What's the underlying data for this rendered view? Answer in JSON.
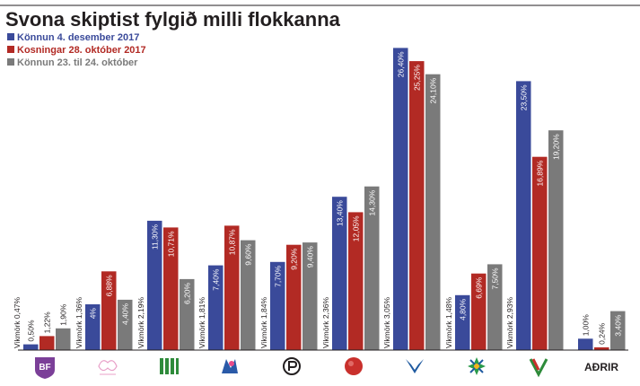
{
  "chart_data": {
    "type": "bar",
    "title": "Svona skiptist fylgið milli flokkanna",
    "legend_position": "top-left",
    "ylim": [
      0,
      28
    ],
    "categories": [
      "BF",
      "C",
      "F",
      "M",
      "P",
      "S",
      "D",
      "B",
      "V",
      "AÐRIR"
    ],
    "category_icons": [
      "bf-logo",
      "c-logo",
      "f-logo",
      "m-logo",
      "p-logo",
      "s-logo",
      "d-logo",
      "b-logo",
      "v-logo",
      "adrir-label"
    ],
    "other_label": "AÐRIR",
    "margins_of_error": [
      "Vikmörk 0,47%",
      "Vikmörk 1,36%",
      "Vikmörk 2,19%",
      "Vikmörk 1,81%",
      "Vikmörk 1,84%",
      "Vikmörk 2,36%",
      "Vikmörk 3,05%",
      "Vikmörk 1,48%",
      "Vikmörk 2,93%",
      ""
    ],
    "series": [
      {
        "name": "Könnun 4. desember 2017",
        "color": "#3a4a9a",
        "values": [
          0.5,
          4.0,
          11.3,
          7.4,
          7.7,
          13.4,
          26.4,
          4.8,
          23.5,
          1.0
        ],
        "labels": [
          "0,50%",
          "4%",
          "11,30%",
          "7,40%",
          "7,70%",
          "13,40%",
          "26,40%",
          "4,80%",
          "23,50%",
          "1,00%"
        ]
      },
      {
        "name": "Kosningar 28. október 2017",
        "color": "#b22a24",
        "values": [
          1.22,
          6.88,
          10.71,
          10.87,
          9.2,
          12.05,
          25.25,
          6.69,
          16.89,
          0.24
        ],
        "labels": [
          "1,22%",
          "6,88%",
          "10,71%",
          "10,87%",
          "9,20%",
          "12,05%",
          "25,25%",
          "6,69%",
          "16,89%",
          "0,24%"
        ]
      },
      {
        "name": "Könnun 23. til 24. október",
        "color": "#7a7a7a",
        "values": [
          1.9,
          4.4,
          6.2,
          9.6,
          9.4,
          14.3,
          24.1,
          7.5,
          19.2,
          3.4
        ],
        "labels": [
          "1,90%",
          "4,40%",
          "6,20%",
          "9,60%",
          "9,40%",
          "14,30%",
          "24,10%",
          "7,50%",
          "19,20%",
          "3,40%"
        ]
      }
    ]
  },
  "logos": {
    "bf": "BF"
  }
}
